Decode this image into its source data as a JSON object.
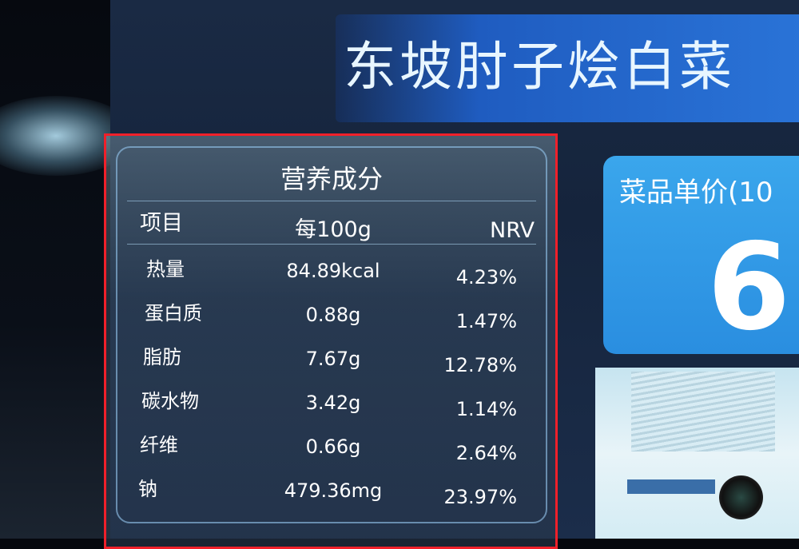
{
  "header": {
    "title": "东坡肘子烩白菜"
  },
  "nutrition": {
    "title": "营养成分",
    "columns": [
      "项目",
      "每100g",
      "NRV"
    ],
    "rows": [
      {
        "item": "热量",
        "per100g": "84.89kcal",
        "nrv": "4.23%"
      },
      {
        "item": "蛋白质",
        "per100g": "0.88g",
        "nrv": "1.47%"
      },
      {
        "item": "脂肪",
        "per100g": "7.67g",
        "nrv": "12.78%"
      },
      {
        "item": "碳水物",
        "per100g": "3.42g",
        "nrv": "1.14%"
      },
      {
        "item": "纤维",
        "per100g": "0.66g",
        "nrv": "2.64%"
      },
      {
        "item": "钠",
        "per100g": "479.36mg",
        "nrv": "23.97%"
      }
    ]
  },
  "price": {
    "label": "菜品单价(10",
    "value": "6."
  },
  "colors": {
    "highlight_box": "#f0202a",
    "price_card": "#3aa6ec",
    "banner": "#2a74d8"
  }
}
